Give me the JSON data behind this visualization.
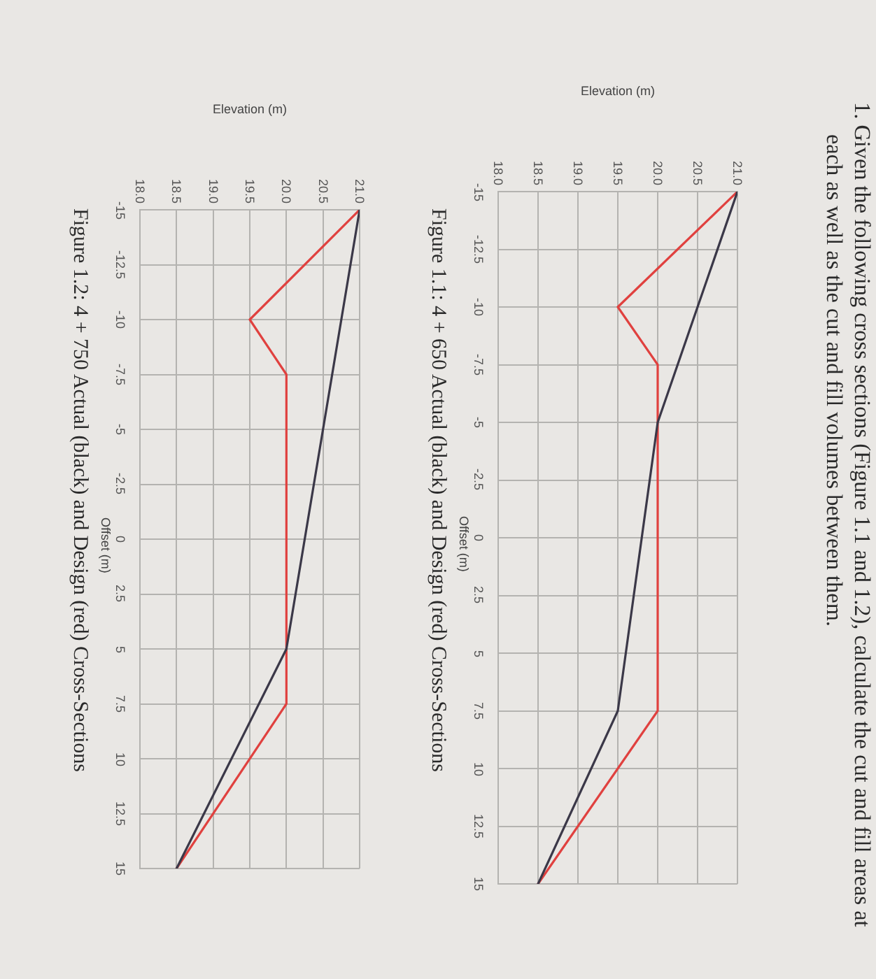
{
  "chart_data": [
    {
      "type": "line",
      "title": "Figure 1.1: 4 + 650 Actual (black) and Design (red) Cross-Sections",
      "annotations": [
        "1. Given the following cross sections (Figure 1.1 and 1.2), calculate the cut and fill areas at each as well as the cut and fill volumes between them."
      ],
      "xlabel": "Elevation (m)",
      "ylabel": "Offset (m)",
      "series": [
        {
          "color": "#3b3848",
          "x": [
            21,
            20,
            19.5,
            18.5
          ],
          "values": [
            -15,
            -5,
            7.5,
            15
          ]
        },
        {
          "color": "#e0413f",
          "x": [
            21,
            19.5,
            20,
            20,
            18.5
          ],
          "values": [
            -15,
            -10,
            -7.5,
            7.5,
            15
          ]
        }
      ],
      "xlim": [
        18,
        21
      ],
      "xticks": [
        {
          "value": 18,
          "label": "18.0"
        },
        18.5,
        {
          "value": 19,
          "label": "19.0"
        },
        19.5,
        {
          "value": 20,
          "label": "20.0"
        },
        20.5,
        {
          "value": 21,
          "label": "21.0"
        }
      ],
      "ylim": [
        15,
        -15
      ],
      "yticks": [
        -15,
        -12.5,
        -10,
        -7.5,
        -5,
        -2.5,
        0,
        2.5,
        5,
        7.5,
        10,
        12.5,
        15
      ],
      "grid": true
    },
    {
      "type": "line",
      "title": "Figure 1.2: 4 + 750 Actual (black) and Design (red) Cross-Sections",
      "xlabel": "Elevation (m)",
      "ylabel": "Offset (m)",
      "series": [
        {
          "color": "#3b3848",
          "x": [
            21,
            20,
            18.5
          ],
          "values": [
            -15,
            5,
            15
          ]
        },
        {
          "color": "#e0413f",
          "x": [
            21,
            19.5,
            20,
            20,
            18.5
          ],
          "values": [
            -15,
            -10,
            -7.5,
            7.5,
            15
          ]
        }
      ],
      "xlim": [
        18,
        21
      ],
      "xticks": [
        {
          "value": 18,
          "label": "18.0"
        },
        18.5,
        {
          "value": 19,
          "label": "19.0"
        },
        19.5,
        {
          "value": 20,
          "label": "20.0"
        },
        20.5,
        {
          "value": 21,
          "label": "21.0"
        }
      ],
      "ylim": [
        15,
        -15
      ],
      "yticks": [
        -15,
        -12.5,
        -10,
        -7.5,
        -5,
        -2.5,
        0,
        2.5,
        5,
        7.5,
        10,
        12.5,
        15
      ],
      "grid": true
    }
  ]
}
